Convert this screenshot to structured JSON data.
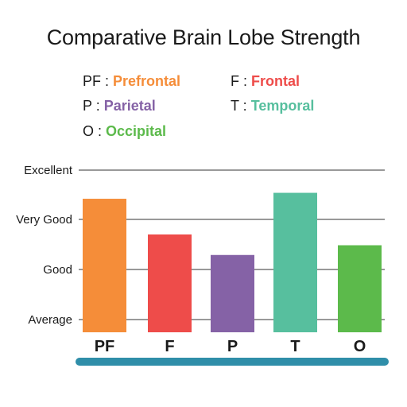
{
  "chart_data": {
    "type": "bar",
    "title": "Comparative Brain Lobe Strength",
    "categories": [
      "PF",
      "F",
      "P",
      "T",
      "O"
    ],
    "values": [
      2.47,
      1.81,
      1.43,
      2.58,
      1.61
    ],
    "y_scale": {
      "min": 0,
      "max": 3
    },
    "y_tick_labels": [
      "Average",
      "Good",
      "Very Good",
      "Excellent"
    ],
    "colors": [
      "#f58d39",
      "#ee4c4a",
      "#8562a6",
      "#57bf9e",
      "#5cba4b"
    ],
    "axis_bar_color": "#2f8ea9",
    "gridline_color": "#333333",
    "grid": true,
    "legend": {
      "placement": "top",
      "entries": [
        {
          "abbr": "PF",
          "name": "Prefrontal",
          "color": "#f58d39"
        },
        {
          "abbr": "F",
          "name": "Frontal",
          "color": "#ee4c4a"
        },
        {
          "abbr": "P",
          "name": "Parietal",
          "color": "#8562a6"
        },
        {
          "abbr": "T",
          "name": "Temporal",
          "color": "#57bf9e"
        },
        {
          "abbr": "O",
          "name": "Occipital",
          "color": "#5cba4b"
        }
      ]
    }
  }
}
